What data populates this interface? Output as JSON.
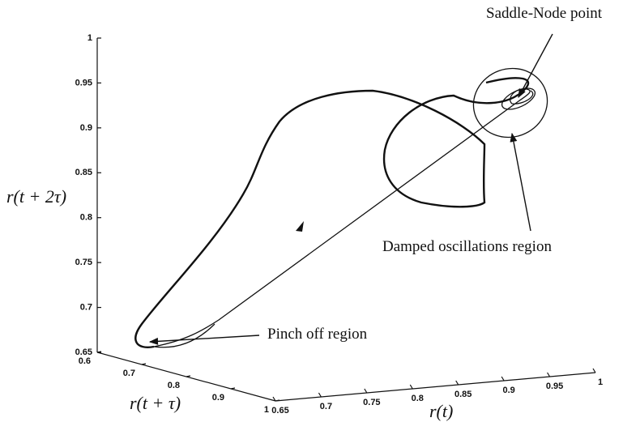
{
  "chart_data": {
    "type": "line3d",
    "xlabel": "r(t)",
    "ylabel": "r(t + τ)",
    "zlabel": "r(t + 2τ)",
    "xlim": [
      0.65,
      1
    ],
    "xticks": [
      0.65,
      0.7,
      0.75,
      0.8,
      0.85,
      0.9,
      0.95,
      1
    ],
    "ylim": [
      0.6,
      1
    ],
    "yticks": [
      0.6,
      0.7,
      0.8,
      0.9,
      1
    ],
    "zlim": [
      0.65,
      1
    ],
    "zticks": [
      0.65,
      0.7,
      0.75,
      0.8,
      0.85,
      0.9,
      0.95,
      1
    ],
    "annotations": [
      "Saddle-Node point",
      "Damped oscillations region",
      "Pinch off region"
    ]
  }
}
